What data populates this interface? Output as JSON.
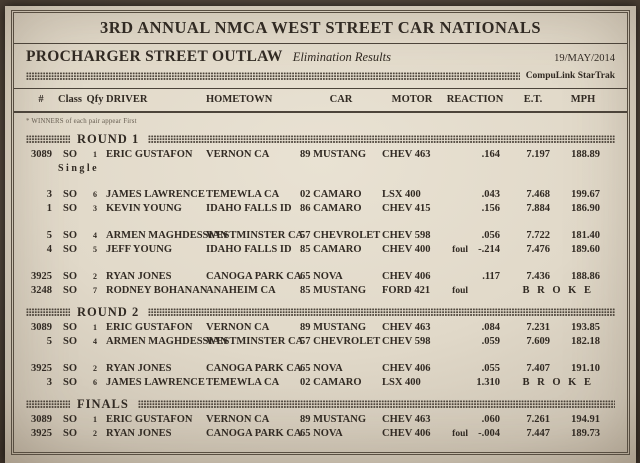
{
  "header": {
    "title": "3RD ANNUAL NMCA WEST STREET CAR NATIONALS",
    "event": "PROCHARGER STREET OUTLAW",
    "results_label": "Elimination Results",
    "date": "19/MAY/2014",
    "timing_system": "CompuLink StarTrak",
    "note": "* WINNERS of each pair appear First"
  },
  "columns": [
    "#",
    "Class",
    "Qfy",
    "DRIVER",
    "HOMETOWN",
    "CAR",
    "MOTOR",
    "REACTION",
    "E.T.",
    "MPH"
  ],
  "colors": {
    "paper": "#e1d9c9",
    "ink": "#312a23",
    "background": "#41362c"
  },
  "rounds": [
    {
      "label": "ROUND 1",
      "rows": [
        {
          "num": "3089",
          "cls": "SO",
          "qfy": "1",
          "driver": "ERIC GUSTAFON",
          "hometown": "VERNON CA",
          "car": "89 MUSTANG",
          "motor": "CHEV 463",
          "foul": "",
          "reaction": ".164",
          "et": "7.197",
          "mph": "188.89",
          "note": "Single",
          "gap_after": true
        },
        {
          "num": "3",
          "cls": "SO",
          "qfy": "6",
          "driver": "JAMES LAWRENCE",
          "hometown": "TEMEWLA CA",
          "car": "02 CAMARO",
          "motor": "LSX 400",
          "foul": "",
          "reaction": ".043",
          "et": "7.468",
          "mph": "199.67"
        },
        {
          "num": "1",
          "cls": "SO",
          "qfy": "3",
          "driver": "KEVIN YOUNG",
          "hometown": "IDAHO FALLS ID",
          "car": "86 CAMARO",
          "motor": "CHEV 415",
          "foul": "",
          "reaction": ".156",
          "et": "7.884",
          "mph": "186.90",
          "gap_after": true
        },
        {
          "num": "5",
          "cls": "SO",
          "qfy": "4",
          "driver": "ARMEN MAGHDESSIAN",
          "hometown": "WESTMINSTER CA",
          "car": "57 CHEVROLET",
          "motor": "CHEV 598",
          "foul": "",
          "reaction": ".056",
          "et": "7.722",
          "mph": "181.40"
        },
        {
          "num": "4",
          "cls": "SO",
          "qfy": "5",
          "driver": "JEFF YOUNG",
          "hometown": "IDAHO FALLS ID",
          "car": "85 CAMARO",
          "motor": "CHEV 400",
          "foul": "foul",
          "reaction": "-.214",
          "et": "7.476",
          "mph": "189.60",
          "gap_after": true
        },
        {
          "num": "3925",
          "cls": "SO",
          "qfy": "2",
          "driver": "RYAN JONES",
          "hometown": "CANOGA PARK CA",
          "car": "65 NOVA",
          "motor": "CHEV 406",
          "foul": "",
          "reaction": ".117",
          "et": "7.436",
          "mph": "188.86"
        },
        {
          "num": "3248",
          "cls": "SO",
          "qfy": "7",
          "driver": "RODNEY BOHANAN",
          "hometown": "ANAHEIM CA",
          "car": "85 MUSTANG",
          "motor": "FORD 421",
          "foul": "foul",
          "reaction": "",
          "broke": "B R O K E"
        }
      ]
    },
    {
      "label": "ROUND 2",
      "rows": [
        {
          "num": "3089",
          "cls": "SO",
          "qfy": "1",
          "driver": "ERIC GUSTAFON",
          "hometown": "VERNON CA",
          "car": "89 MUSTANG",
          "motor": "CHEV 463",
          "foul": "",
          "reaction": ".084",
          "et": "7.231",
          "mph": "193.85"
        },
        {
          "num": "5",
          "cls": "SO",
          "qfy": "4",
          "driver": "ARMEN MAGHDESSIAN",
          "hometown": "WESTMINSTER CA",
          "car": "57 CHEVROLET",
          "motor": "CHEV 598",
          "foul": "",
          "reaction": ".059",
          "et": "7.609",
          "mph": "182.18",
          "gap_after": true
        },
        {
          "num": "3925",
          "cls": "SO",
          "qfy": "2",
          "driver": "RYAN JONES",
          "hometown": "CANOGA PARK CA",
          "car": "65 NOVA",
          "motor": "CHEV 406",
          "foul": "",
          "reaction": ".055",
          "et": "7.407",
          "mph": "191.10"
        },
        {
          "num": "3",
          "cls": "SO",
          "qfy": "6",
          "driver": "JAMES LAWRENCE",
          "hometown": "TEMEWLA CA",
          "car": "02 CAMARO",
          "motor": "LSX 400",
          "foul": "",
          "reaction": "1.310",
          "broke": "B R O K E"
        }
      ]
    },
    {
      "label": "FINALS",
      "rows": [
        {
          "num": "3089",
          "cls": "SO",
          "qfy": "1",
          "driver": "ERIC GUSTAFON",
          "hometown": "VERNON CA",
          "car": "89 MUSTANG",
          "motor": "CHEV 463",
          "foul": "",
          "reaction": ".060",
          "et": "7.261",
          "mph": "194.91"
        },
        {
          "num": "3925",
          "cls": "SO",
          "qfy": "2",
          "driver": "RYAN JONES",
          "hometown": "CANOGA PARK CA",
          "car": "65 NOVA",
          "motor": "CHEV 406",
          "foul": "foul",
          "reaction": "-.004",
          "et": "7.447",
          "mph": "189.73"
        }
      ]
    }
  ]
}
